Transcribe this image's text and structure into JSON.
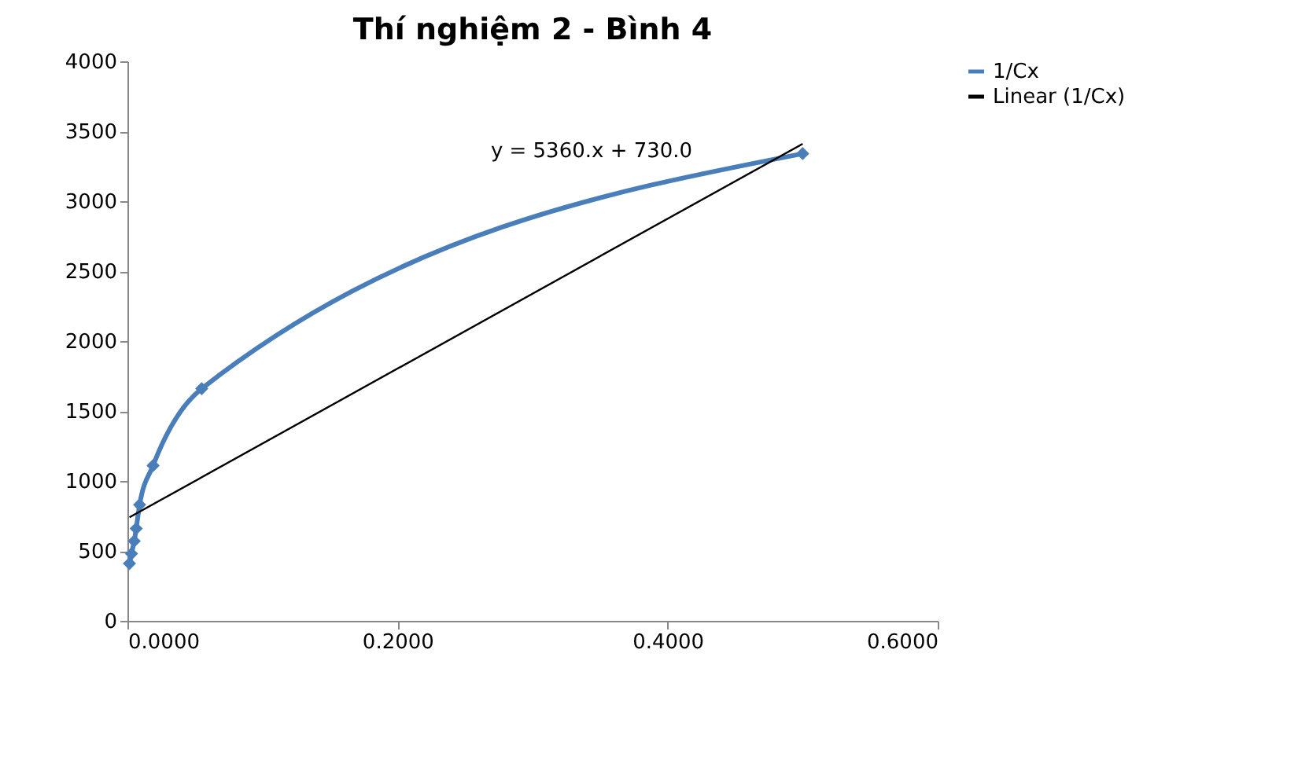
{
  "chart_data": {
    "type": "line",
    "title": "Thí nghiệm 2 - Bình 4",
    "series": [
      {
        "name": "1/Cx",
        "color": "#4a7ebb",
        "marker": "diamond",
        "x": [
          0.0015,
          0.003,
          0.005,
          0.0065,
          0.009,
          0.019,
          0.055,
          0.5
        ],
        "values": [
          410,
          480,
          570,
          660,
          830,
          1110,
          1660,
          3340
        ]
      },
      {
        "name": "Linear (1/Cx)",
        "color": "#000000",
        "marker": "none",
        "x": [
          0.0015,
          0.5
        ],
        "values": [
          740,
          3410
        ]
      }
    ],
    "annotations": [
      "y = 5360.x + 730.0"
    ],
    "xlim": [
      0,
      0.6
    ],
    "xticks": [
      {
        "value": 0,
        "label": "0.0000"
      },
      {
        "value": 0.2,
        "label": "0.2000"
      },
      {
        "value": 0.4,
        "label": "0.4000"
      },
      {
        "value": 0.6,
        "label": "0.6000"
      }
    ],
    "ylim": [
      0,
      4000
    ],
    "yticks": [
      0,
      500,
      1000,
      1500,
      2000,
      2500,
      3000,
      3500,
      4000
    ],
    "grid": false,
    "legend": "right"
  }
}
